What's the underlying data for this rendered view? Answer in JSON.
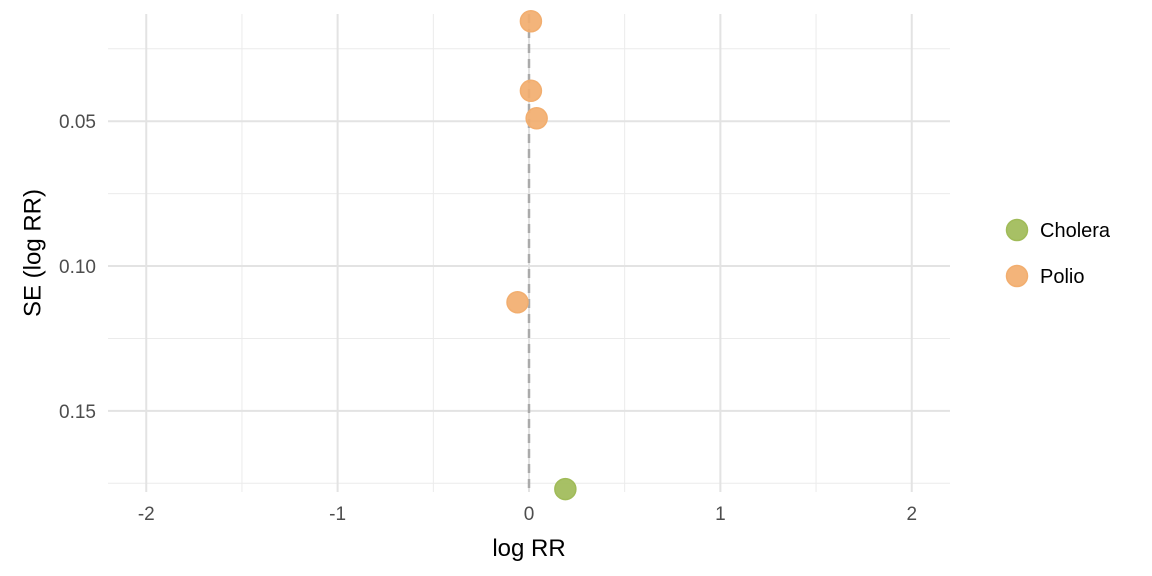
{
  "chart_data": {
    "type": "scatter",
    "title": "",
    "xlabel": "log RR",
    "ylabel": "SE (log RR)",
    "xlim": [
      -2.2,
      2.2
    ],
    "ylim": [
      0.013,
      0.178
    ],
    "y_reversed": true,
    "x_ticks": [
      -2,
      -1,
      0,
      1,
      2
    ],
    "x_tick_labels": [
      "-2",
      "-1",
      "0",
      "1",
      "2"
    ],
    "x_minor_ticks": [
      -1.5,
      -0.5,
      0.5,
      1.5
    ],
    "y_ticks": [
      0.05,
      0.1,
      0.15
    ],
    "y_tick_labels": [
      "0.05",
      "0.10",
      "0.15"
    ],
    "y_minor_ticks": [
      0.025,
      0.075,
      0.125,
      0.175
    ],
    "reference_line": {
      "x": 0,
      "style": "dashed",
      "color": "#aaaaaa"
    },
    "grid": true,
    "legend": "right",
    "series": [
      {
        "name": "Cholera",
        "color": "#a0bb58",
        "points": [
          {
            "x": 0.19,
            "y": 0.177
          }
        ]
      },
      {
        "name": "Polio",
        "color": "#f2ae6f",
        "points": [
          {
            "x": 0.01,
            "y": 0.0155
          },
          {
            "x": 0.01,
            "y": 0.0395
          },
          {
            "x": 0.04,
            "y": 0.049
          },
          {
            "x": -0.06,
            "y": 0.1125
          }
        ]
      }
    ]
  }
}
